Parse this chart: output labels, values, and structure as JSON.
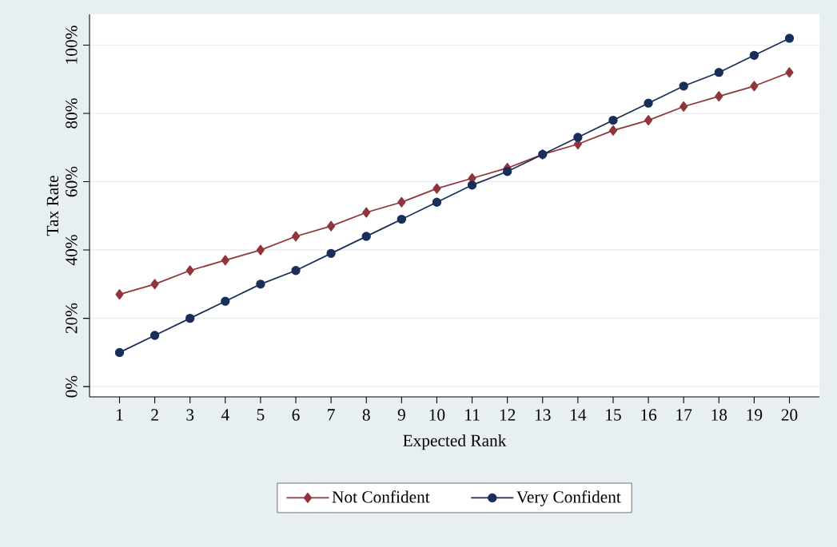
{
  "chart_data": {
    "type": "line",
    "xlabel": "Expected Rank",
    "ylabel": "Tax Rate",
    "x": [
      1,
      2,
      3,
      4,
      5,
      6,
      7,
      8,
      9,
      10,
      11,
      12,
      13,
      14,
      15,
      16,
      17,
      18,
      19,
      20
    ],
    "xlim": [
      0.15,
      20.85
    ],
    "xticks": [
      1,
      2,
      3,
      4,
      5,
      6,
      7,
      8,
      9,
      10,
      11,
      12,
      13,
      14,
      15,
      16,
      17,
      18,
      19,
      20
    ],
    "ylim": [
      -3,
      109
    ],
    "yticks": [
      {
        "value": 0,
        "label": "0%"
      },
      {
        "value": 20,
        "label": "20%"
      },
      {
        "value": 40,
        "label": "40%"
      },
      {
        "value": 60,
        "label": "60%"
      },
      {
        "value": 80,
        "label": "80%"
      },
      {
        "value": 100,
        "label": "100%"
      }
    ],
    "grid": "y",
    "legend": "bottom",
    "line_style": "solid",
    "series": [
      {
        "name": "Not Confident",
        "color": "#90353b",
        "marker": "diamond",
        "values": [
          27,
          30,
          34,
          37,
          40,
          44,
          47,
          51,
          54,
          58,
          61,
          64,
          68,
          71,
          75,
          78,
          82,
          85,
          88,
          92
        ]
      },
      {
        "name": "Very Confident",
        "color": "#1a2e5a",
        "marker": "circle",
        "values": [
          10,
          15,
          20,
          25,
          30,
          34,
          39,
          44,
          49,
          54,
          59,
          63,
          68,
          73,
          78,
          83,
          88,
          92,
          97,
          102
        ]
      }
    ]
  }
}
